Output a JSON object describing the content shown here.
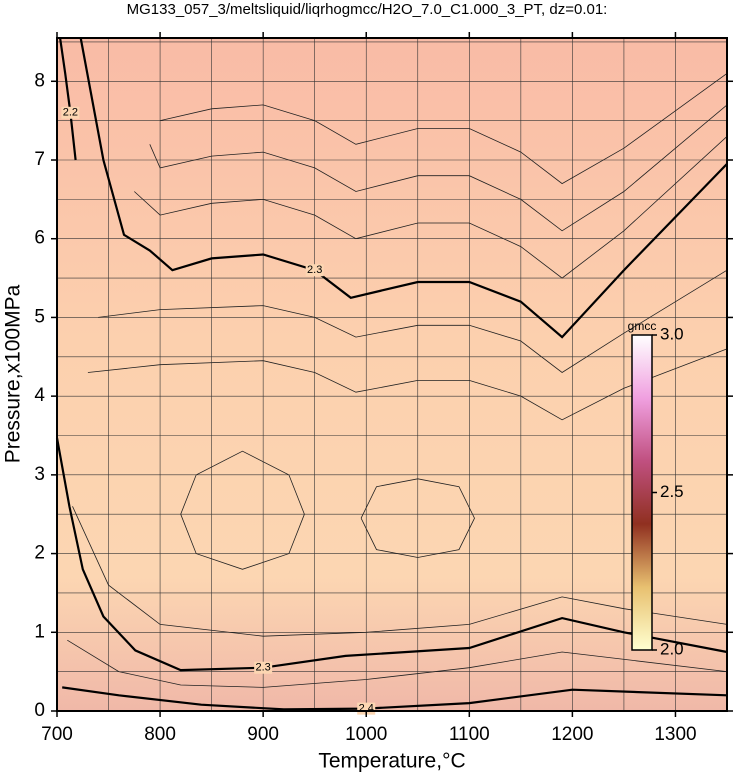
{
  "chart_data": {
    "type": "contour",
    "title": "MG133_057_3/meltsliquid/liqrhogmcc/H2O_7.0_C1.000_3_PT, dz=0.01:",
    "x_label": "Temperature,°C",
    "y_label": "Pressure,x100MPa",
    "xlim": [
      700,
      1350
    ],
    "ylim": [
      0,
      8.55
    ],
    "xticks": [
      700,
      800,
      900,
      1000,
      1100,
      1200,
      1300
    ],
    "yticks": [
      0,
      1,
      2,
      3,
      4,
      5,
      6,
      7,
      8
    ],
    "xgrid": [
      700,
      750,
      800,
      850,
      900,
      950,
      1000,
      1050,
      1100,
      1150,
      1200,
      1250,
      1300
    ],
    "ygrid": [
      0.5,
      1,
      1.5,
      2,
      2.5,
      3,
      3.5,
      4,
      4.5,
      5,
      5.5,
      6,
      6.5,
      7,
      7.5,
      8,
      8.5
    ],
    "grid": true,
    "contours": [
      {
        "label": "2.3",
        "x": [
          723,
          745,
          765,
          790,
          812,
          850,
          900,
          950,
          985,
          1050,
          1100,
          1150,
          1190,
          1250,
          1350
        ],
        "y": [
          8.55,
          7.0,
          6.05,
          5.85,
          5.6,
          5.75,
          5.8,
          5.6,
          5.25,
          5.45,
          5.45,
          5.2,
          4.75,
          5.6,
          6.95
        ]
      },
      {
        "label": "2.3",
        "x": [
          700,
          712,
          725,
          745,
          776,
          820,
          900,
          980,
          1100,
          1190,
          1250,
          1350
        ],
        "y": [
          3.47,
          2.6,
          1.8,
          1.2,
          0.77,
          0.52,
          0.55,
          0.7,
          0.8,
          1.18,
          1.0,
          0.75
        ]
      },
      {
        "label": "2.4",
        "x": [
          705,
          760,
          840,
          920,
          1000,
          1100,
          1200,
          1350
        ],
        "y": [
          0.3,
          0.2,
          0.08,
          0.02,
          0.03,
          0.1,
          0.27,
          0.2
        ]
      },
      {
        "label": "2.2",
        "x": [
          703,
          708,
          713,
          718
        ],
        "y": [
          8.55,
          8.1,
          7.6,
          7.0
        ]
      }
    ],
    "minor_contours": [
      {
        "x": [
          775,
          800,
          850,
          900,
          950,
          990,
          1050,
          1100,
          1150,
          1190,
          1250,
          1350
        ],
        "y": [
          6.6,
          6.3,
          6.45,
          6.5,
          6.3,
          6.0,
          6.2,
          6.2,
          5.9,
          5.5,
          6.1,
          7.3
        ]
      },
      {
        "x": [
          790,
          800,
          850,
          900,
          950,
          990,
          1050,
          1100,
          1150,
          1190,
          1250,
          1350
        ],
        "y": [
          7.2,
          6.9,
          7.05,
          7.1,
          6.9,
          6.6,
          6.8,
          6.8,
          6.5,
          6.1,
          6.6,
          7.7
        ]
      },
      {
        "x": [
          800,
          850,
          900,
          950,
          990,
          1050,
          1100,
          1150,
          1190,
          1250,
          1350
        ],
        "y": [
          7.5,
          7.65,
          7.7,
          7.5,
          7.2,
          7.4,
          7.4,
          7.1,
          6.7,
          7.15,
          8.1
        ]
      },
      {
        "x": [
          740,
          800,
          900,
          950,
          990,
          1050,
          1100,
          1150,
          1190,
          1250,
          1350
        ],
        "y": [
          5.0,
          5.1,
          5.15,
          5.0,
          4.75,
          4.9,
          4.9,
          4.7,
          4.3,
          4.8,
          5.6
        ]
      },
      {
        "x": [
          730,
          800,
          900,
          950,
          990,
          1050,
          1100,
          1150,
          1190,
          1250,
          1350
        ],
        "y": [
          4.3,
          4.4,
          4.45,
          4.3,
          4.05,
          4.2,
          4.2,
          4.0,
          3.7,
          4.1,
          4.6
        ]
      },
      {
        "x": [
          820,
          835,
          880,
          925,
          940,
          925,
          880,
          835,
          820
        ],
        "y": [
          2.5,
          3.0,
          3.3,
          3.0,
          2.5,
          2.0,
          1.8,
          2.0,
          2.5
        ]
      },
      {
        "x": [
          995,
          1010,
          1050,
          1090,
          1105,
          1090,
          1050,
          1010,
          995
        ],
        "y": [
          2.45,
          2.85,
          2.95,
          2.85,
          2.45,
          2.05,
          1.95,
          2.05,
          2.45
        ]
      },
      {
        "x": [
          715,
          750,
          800,
          900,
          1000,
          1100,
          1190,
          1250,
          1350
        ],
        "y": [
          2.6,
          1.6,
          1.1,
          0.95,
          1.0,
          1.1,
          1.45,
          1.3,
          1.1
        ]
      },
      {
        "x": [
          710,
          760,
          820,
          900,
          1000,
          1100,
          1190,
          1350
        ],
        "y": [
          0.9,
          0.5,
          0.33,
          0.3,
          0.4,
          0.55,
          0.75,
          0.5
        ]
      }
    ],
    "colorbar": {
      "label": "gmcc",
      "zlim": [
        2.0,
        3.0
      ],
      "zticks": [
        {
          "value": 2.0,
          "label": "2.0"
        },
        {
          "value": 2.5,
          "label": "2.5"
        },
        {
          "value": 3.0,
          "label": "3.0"
        }
      ],
      "colors": [
        "#ffffd0",
        "#e8c070",
        "#903020",
        "#c05080",
        "#f0a0e0",
        "#ffffff"
      ]
    }
  }
}
